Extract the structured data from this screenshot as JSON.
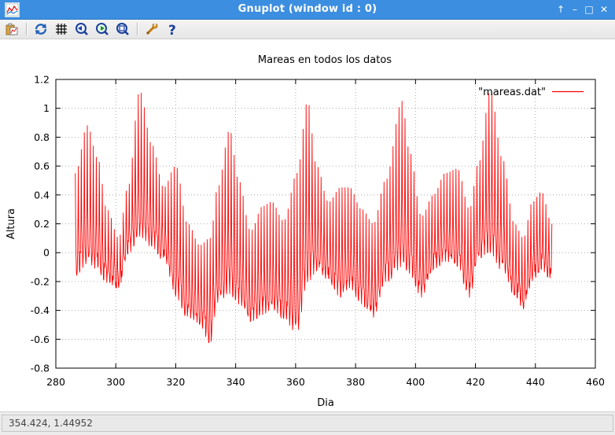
{
  "window": {
    "title": "Gnuplot (window id : 0)",
    "buttons": [
      "↑",
      "–",
      "□",
      "✕"
    ]
  },
  "toolbar": {
    "items": [
      {
        "name": "copy-to-clipboard",
        "icon": "clipboard-icon"
      },
      {
        "name": "replot",
        "icon": "replot-icon"
      },
      {
        "name": "toggle-grid",
        "icon": "grid-icon"
      },
      {
        "name": "previous-zoom",
        "icon": "zoom-previous-icon"
      },
      {
        "name": "next-zoom",
        "icon": "zoom-next-icon"
      },
      {
        "name": "autoscale",
        "icon": "zoom-autoscale-icon"
      },
      {
        "name": "settings",
        "icon": "wrench-icon"
      },
      {
        "name": "help",
        "icon": "help-icon"
      }
    ]
  },
  "status": {
    "text": "354.424,  1.44952"
  },
  "chart_data": {
    "type": "line",
    "title": "Mareas en todos los datos",
    "xlabel": "Dia",
    "ylabel": "Altura",
    "xlim": [
      280,
      460
    ],
    "ylim": [
      -0.8,
      1.2
    ],
    "xticks": [
      "280",
      "300",
      "320",
      "340",
      "360",
      "380",
      "400",
      "420",
      "440",
      "460"
    ],
    "yticks": [
      "-0.8",
      "-0.6",
      "-0.4",
      "-0.2",
      "0",
      "0.2",
      "0.4",
      "0.6",
      "0.8",
      "1",
      "1.2"
    ],
    "grid": true,
    "legend": "top-right",
    "series": [
      {
        "name": "\"mareas.dat\"",
        "color": "#ff0000",
        "sample_interval_days": 0.125,
        "x_start": 286.5,
        "x_end": 445.5,
        "envelope_key_points": {
          "x": [
            286.5,
            290.5,
            294,
            297,
            301,
            304,
            308,
            312,
            316,
            320,
            324,
            328,
            331.5,
            334,
            338,
            341,
            345,
            349,
            352,
            356,
            360.5,
            364,
            367,
            371,
            375,
            378,
            382,
            386,
            390,
            395.5,
            398,
            402,
            406,
            410,
            414,
            418,
            421,
            425,
            429,
            433,
            436,
            439,
            442,
            445.5
          ],
          "high_max": [
            0.55,
            0.88,
            0.65,
            0.3,
            0.1,
            0.45,
            1.12,
            0.75,
            0.45,
            0.6,
            0.2,
            0.05,
            0.1,
            0.45,
            0.85,
            0.5,
            0.15,
            0.32,
            0.35,
            0.22,
            0.55,
            1.05,
            0.6,
            0.35,
            0.45,
            0.45,
            0.3,
            0.2,
            0.5,
            1.05,
            0.7,
            0.25,
            0.4,
            0.55,
            0.58,
            0.3,
            0.62,
            1.12,
            0.65,
            0.2,
            0.1,
            0.35,
            0.42,
            0.2
          ],
          "low_min": [
            -0.15,
            -0.08,
            -0.12,
            -0.2,
            -0.25,
            0.0,
            0.1,
            0.05,
            -0.05,
            -0.3,
            -0.45,
            -0.5,
            -0.62,
            -0.35,
            -0.28,
            -0.35,
            -0.48,
            -0.42,
            -0.4,
            -0.45,
            -0.56,
            -0.2,
            -0.12,
            -0.2,
            -0.3,
            -0.25,
            -0.35,
            -0.45,
            -0.2,
            -0.1,
            -0.15,
            -0.3,
            -0.12,
            -0.05,
            -0.1,
            -0.3,
            -0.05,
            0.0,
            -0.12,
            -0.3,
            -0.38,
            -0.2,
            -0.12,
            -0.18
          ]
        }
      }
    ]
  }
}
